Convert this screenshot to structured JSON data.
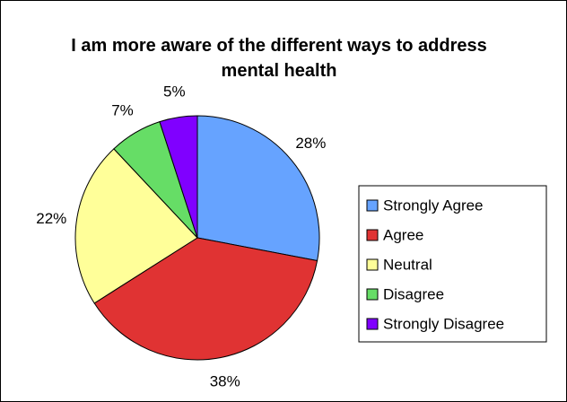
{
  "chart_data": {
    "type": "pie",
    "title": "I am more aware of the different ways to address mental health",
    "categories": [
      "Strongly Agree",
      "Agree",
      "Neutral",
      "Disagree",
      "Strongly Disagree"
    ],
    "values": [
      28,
      38,
      22,
      7,
      5
    ],
    "value_labels": [
      "28%",
      "38%",
      "22%",
      "7%",
      "5%"
    ],
    "colors": [
      "#66a3ff",
      "#e03333",
      "#ffff99",
      "#66dd66",
      "#8000ff"
    ],
    "legend": "right"
  }
}
